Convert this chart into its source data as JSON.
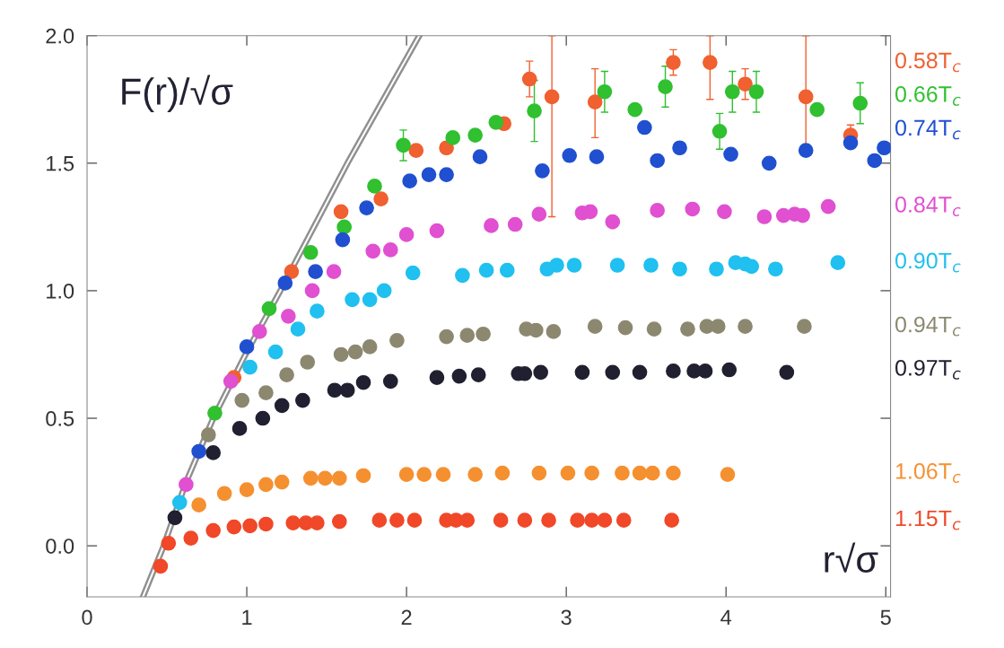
{
  "chart_data": {
    "type": "scatter",
    "xlabel": "r√σ",
    "ylabel": "F(r)/√σ",
    "xlim": [
      0,
      5.03
    ],
    "ylim": [
      -0.2,
      2.0
    ],
    "xticks": [
      0,
      1,
      2,
      3,
      4,
      5
    ],
    "yticks": [
      {
        "value": 0,
        "label": "0.0"
      },
      0.5,
      {
        "value": 1,
        "label": "1.0"
      },
      1.5,
      {
        "value": 2,
        "label": "2.0"
      }
    ],
    "grid": false,
    "marker": "circle",
    "series": [
      {
        "type": "line",
        "marker": "none",
        "color": "#909090",
        "x": [
          0.35,
          0.48,
          0.62,
          0.79,
          1.0,
          1.21,
          1.63,
          2.08
        ],
        "values": [
          -0.2,
          0,
          0.25,
          0.5,
          0.76,
          1.0,
          1.5,
          2.0
        ]
      },
      {
        "name": "0.58T$_{c}$",
        "color": "#f06030",
        "x": [
          0.92,
          1.28,
          1.59,
          1.84,
          2.06,
          2.25,
          2.61,
          2.77,
          2.91,
          3.18,
          3.67,
          3.9,
          4.12,
          4.5,
          4.78
        ],
        "values": [
          0.66,
          1.075,
          1.31,
          1.36,
          1.55,
          1.56,
          1.655,
          1.83,
          1.76,
          1.74,
          1.895,
          1.895,
          1.81,
          1.76,
          1.61
        ],
        "errors": [
          null,
          null,
          null,
          null,
          null,
          null,
          null,
          0.07,
          [
            1.29,
            2.0
          ],
          [
            1.6,
            1.87
          ],
          0.05,
          [
            1.75,
            2.0
          ],
          0.06,
          [
            1.57,
            2.0
          ],
          0.04
        ]
      },
      {
        "name": "0.66T$_{c}$",
        "color": "#30c030",
        "x": [
          0.8,
          1.14,
          1.4,
          1.61,
          1.8,
          1.98,
          2.29,
          2.43,
          2.56,
          2.8,
          3.24,
          3.43,
          3.62,
          3.96,
          4.04,
          4.19,
          4.57,
          4.84
        ],
        "values": [
          0.52,
          0.93,
          1.15,
          1.25,
          1.41,
          1.57,
          1.6,
          1.61,
          1.66,
          1.705,
          1.78,
          1.71,
          1.8,
          1.625,
          1.78,
          1.78,
          1.71,
          1.735
        ],
        "errors": [
          null,
          null,
          null,
          null,
          null,
          0.06,
          null,
          null,
          null,
          0.12,
          0.08,
          null,
          0.08,
          0.07,
          0.08,
          0.08,
          null,
          0.08
        ]
      },
      {
        "name": "0.74T$_{c}$",
        "color": "#2050d0",
        "x": [
          0.7,
          1.0,
          1.24,
          1.43,
          1.6,
          1.75,
          2.02,
          2.14,
          2.25,
          2.46,
          2.85,
          3.02,
          3.19,
          3.49,
          3.57,
          3.71,
          4.03,
          4.27,
          4.5,
          4.78,
          4.93,
          4.99
        ],
        "values": [
          0.37,
          0.78,
          1.03,
          1.075,
          1.2,
          1.325,
          1.43,
          1.455,
          1.455,
          1.525,
          1.47,
          1.53,
          1.525,
          1.64,
          1.51,
          1.56,
          1.535,
          1.5,
          1.55,
          1.58,
          1.51,
          1.56
        ]
      },
      {
        "name": "0.84T$_{c}$",
        "color": "#e050d0",
        "x": [
          0.62,
          0.9,
          1.08,
          1.26,
          1.41,
          1.545,
          1.79,
          1.9,
          2.0,
          2.19,
          2.53,
          2.68,
          2.83,
          3.1,
          3.15,
          3.29,
          3.57,
          3.79,
          3.99,
          4.24,
          4.36,
          4.43,
          4.48,
          4.64
        ],
        "values": [
          0.24,
          0.645,
          0.84,
          0.9,
          1.0,
          1.075,
          1.155,
          1.16,
          1.22,
          1.235,
          1.255,
          1.26,
          1.3,
          1.305,
          1.31,
          1.27,
          1.315,
          1.32,
          1.31,
          1.29,
          1.295,
          1.3,
          1.295,
          1.33
        ]
      },
      {
        "name": "0.90T$_{c}$",
        "color": "#20c0f0",
        "x": [
          0.58,
          1.02,
          1.18,
          1.32,
          1.44,
          1.66,
          1.77,
          1.86,
          2.04,
          2.35,
          2.5,
          2.63,
          2.88,
          2.94,
          3.05,
          3.32,
          3.53,
          3.71,
          3.94,
          4.06,
          4.12,
          4.16,
          4.31,
          4.7
        ],
        "values": [
          0.17,
          0.7,
          0.76,
          0.85,
          0.92,
          0.965,
          0.965,
          1.0,
          1.07,
          1.06,
          1.08,
          1.08,
          1.085,
          1.1,
          1.1,
          1.1,
          1.1,
          1.085,
          1.085,
          1.11,
          1.105,
          1.095,
          1.085,
          1.11
        ]
      },
      {
        "name": "0.94T$_{c}$",
        "color": "#8c8870",
        "x": [
          0.76,
          0.97,
          1.12,
          1.25,
          1.38,
          1.59,
          1.68,
          1.77,
          1.94,
          2.25,
          2.38,
          2.48,
          2.75,
          2.81,
          2.92,
          3.18,
          3.37,
          3.55,
          3.76,
          3.88,
          3.95,
          4.12,
          4.49
        ],
        "values": [
          0.435,
          0.57,
          0.6,
          0.67,
          0.72,
          0.75,
          0.76,
          0.78,
          0.805,
          0.82,
          0.825,
          0.83,
          0.85,
          0.845,
          0.84,
          0.86,
          0.855,
          0.85,
          0.85,
          0.86,
          0.86,
          0.86,
          0.86
        ]
      },
      {
        "name": "0.97T$_{c}$",
        "color": "#202030",
        "x": [
          0.55,
          0.79,
          0.955,
          1.1,
          1.22,
          1.35,
          1.55,
          1.63,
          1.73,
          1.9,
          2.19,
          2.33,
          2.45,
          2.7,
          2.74,
          2.84,
          3.1,
          3.29,
          3.46,
          3.67,
          3.8,
          3.87,
          4.02,
          4.38
        ],
        "values": [
          0.11,
          0.365,
          0.46,
          0.5,
          0.55,
          0.57,
          0.61,
          0.61,
          0.64,
          0.645,
          0.66,
          0.665,
          0.67,
          0.675,
          0.675,
          0.68,
          0.68,
          0.68,
          0.68,
          0.685,
          0.685,
          0.685,
          0.69,
          0.68
        ]
      },
      {
        "name": "1.06T$_{c}$",
        "color": "#f59030",
        "x": [
          0.7,
          0.86,
          1.0,
          1.12,
          1.22,
          1.4,
          1.49,
          1.58,
          1.73,
          2.0,
          2.11,
          2.23,
          2.43,
          2.6,
          2.83,
          3.01,
          3.16,
          3.35,
          3.46,
          3.54,
          3.67,
          4.01
        ],
        "values": [
          0.16,
          0.205,
          0.22,
          0.24,
          0.25,
          0.265,
          0.265,
          0.265,
          0.275,
          0.28,
          0.28,
          0.28,
          0.28,
          0.285,
          0.285,
          0.285,
          0.285,
          0.285,
          0.285,
          0.285,
          0.285,
          0.28
        ]
      },
      {
        "name": "1.15T$_{c}$",
        "color": "#f04828",
        "x": [
          0.46,
          0.51,
          0.65,
          0.79,
          0.92,
          1.02,
          1.12,
          1.29,
          1.37,
          1.44,
          1.58,
          1.83,
          1.94,
          2.05,
          2.25,
          2.31,
          2.38,
          2.59,
          2.74,
          2.89,
          3.07,
          3.16,
          3.24,
          3.36,
          3.66
        ],
        "values": [
          -0.08,
          0.01,
          0.03,
          0.06,
          0.074,
          0.078,
          0.085,
          0.09,
          0.09,
          0.09,
          0.095,
          0.1,
          0.1,
          0.1,
          0.1,
          0.1,
          0.1,
          0.1,
          0.1,
          0.1,
          0.1,
          0.1,
          0.1,
          0.1,
          0.1
        ]
      }
    ]
  }
}
